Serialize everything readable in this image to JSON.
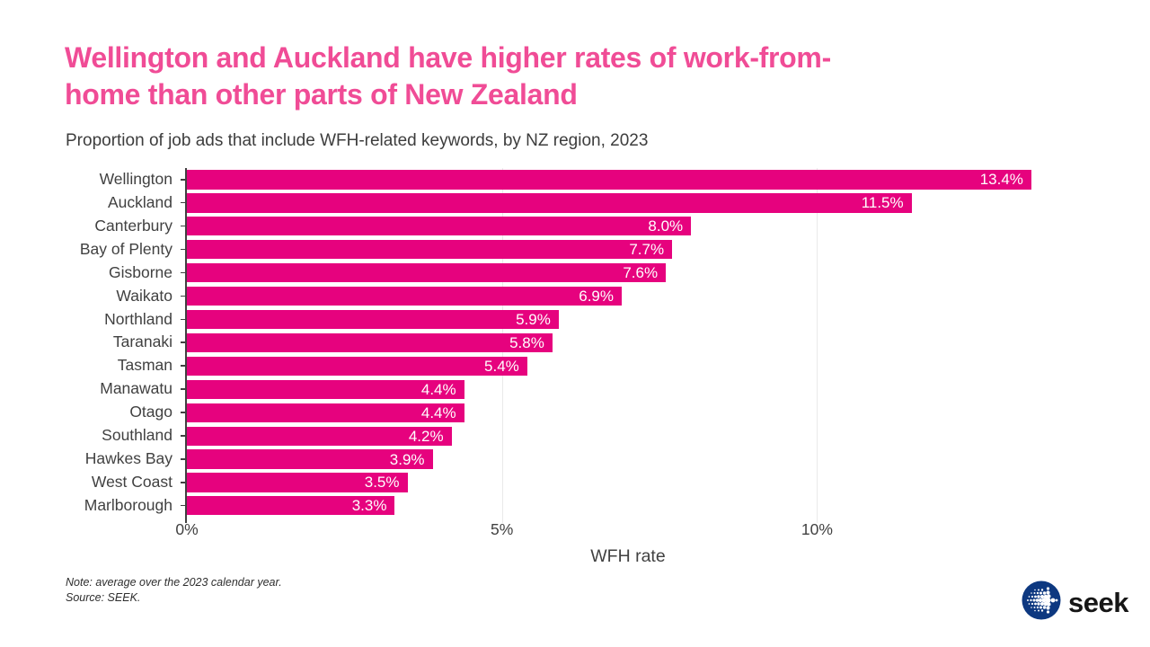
{
  "title": {
    "line1": "Wellington and Auckland have higher rates of work-from-",
    "line2": "home than other parts of New Zealand"
  },
  "subtitle": "Proportion of job ads that include WFH-related keywords, by NZ region, 2023",
  "chart_data": {
    "type": "bar",
    "orientation": "horizontal",
    "title": "Wellington and Auckland have higher rates of work-from-home than other parts of New Zealand",
    "subtitle": "Proportion of job ads that include WFH-related keywords, by NZ region, 2023",
    "categories": [
      "Wellington",
      "Auckland",
      "Canterbury",
      "Bay of Plenty",
      "Gisborne",
      "Waikato",
      "Northland",
      "Taranaki",
      "Tasman",
      "Manawatu",
      "Otago",
      "Southland",
      "Hawkes Bay",
      "West Coast",
      "Marlborough"
    ],
    "values": [
      13.4,
      11.5,
      8.0,
      7.7,
      7.6,
      6.9,
      5.9,
      5.8,
      5.4,
      4.4,
      4.4,
      4.2,
      3.9,
      3.5,
      3.3
    ],
    "value_labels": [
      "13.4%",
      "11.5%",
      "8.0%",
      "7.7%",
      "7.6%",
      "6.9%",
      "5.9%",
      "5.8%",
      "5.4%",
      "4.4%",
      "4.4%",
      "4.2%",
      "3.9%",
      "3.5%",
      "3.3%"
    ],
    "xlabel": "WFH rate",
    "ylabel": "",
    "xlim": [
      0,
      14
    ],
    "x_ticks": [
      {
        "value": 0,
        "label": "0%"
      },
      {
        "value": 5,
        "label": "5%"
      },
      {
        "value": 10,
        "label": "10%"
      }
    ],
    "grid": "vertical-light",
    "legend": "none",
    "value_labels_position": "inside-end-white"
  },
  "note": {
    "line1": "Note: average over the 2023 calendar year.",
    "line2": "Source: SEEK."
  },
  "logo": {
    "text": "seek"
  },
  "colors": {
    "title_pink": "#f04c96",
    "bar_pink": "#e6027e",
    "axis_text": "#414141",
    "gridline": "#eaeaea",
    "logo_navy": "#0d3880",
    "background": "#ffffff"
  }
}
